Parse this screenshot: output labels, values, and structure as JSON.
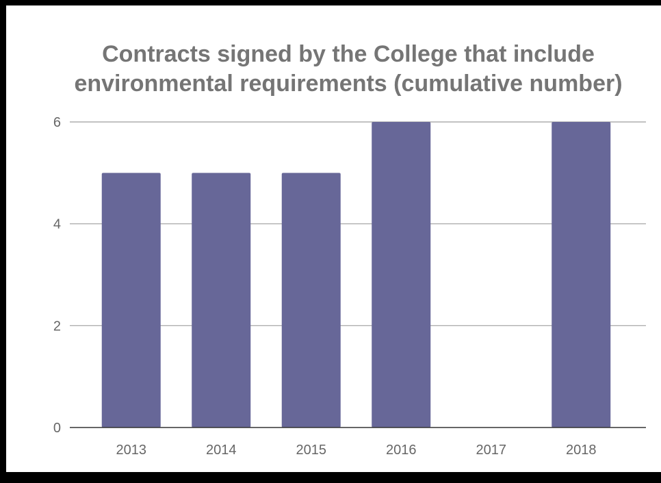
{
  "chart_data": {
    "type": "bar",
    "title": "Contracts signed by the College that include environmental requirements (cumulative number)",
    "title_lines": [
      "Contracts signed by the College that include",
      "environmental requirements (cumulative number)"
    ],
    "categories": [
      "2013",
      "2014",
      "2015",
      "2016",
      "2017",
      "2018"
    ],
    "values": [
      5,
      5,
      5,
      6,
      null,
      6
    ],
    "ylim": [
      0,
      6
    ],
    "yticks": [
      0,
      2,
      4,
      6
    ],
    "grid": true,
    "colors": {
      "bar": "#676798",
      "title": "#757575",
      "tick_label": "#666666",
      "gridline": "#9e9e9e",
      "baseline": "#333333",
      "frame": "#000000",
      "background": "#ffffff"
    }
  }
}
